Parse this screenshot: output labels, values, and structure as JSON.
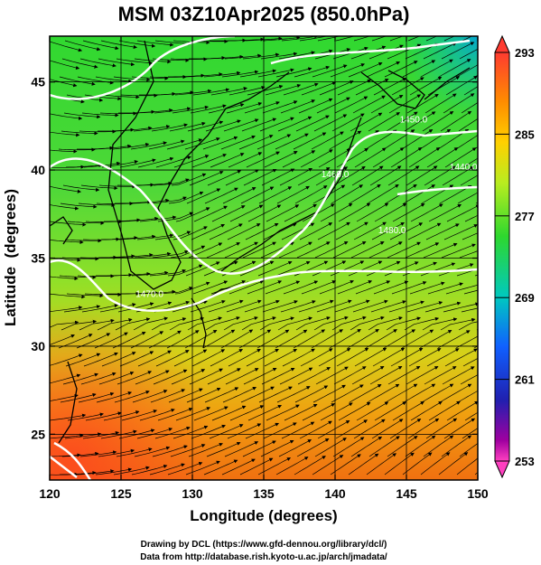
{
  "chart_data": {
    "type": "heatmap",
    "title": "MSM 03Z10Apr2025 (850.0hPa)",
    "xlabel": "Longitude (degrees)",
    "ylabel": "Latitude  (degrees)",
    "xlim": [
      120,
      150
    ],
    "ylim": [
      22.4,
      47.6
    ],
    "xticks": [
      "120",
      "125",
      "130",
      "135",
      "140",
      "145",
      "150"
    ],
    "yticks": [
      "25",
      "30",
      "35",
      "40",
      "45"
    ],
    "colorbar": {
      "min": 253,
      "max": 293,
      "labels": [
        "293",
        "285",
        "277",
        "269",
        "261",
        "253"
      ],
      "colors": [
        "#ff3b30",
        "#ff8c00",
        "#ffd000",
        "#b8ec20",
        "#2ed82e",
        "#00c8c0",
        "#1060ff",
        "#2020b0",
        "#a000a0",
        "#ff40c0"
      ]
    },
    "contours": [
      {
        "label": "1460.0",
        "lon": 140,
        "lat": 39.6
      },
      {
        "label": "1480.0",
        "lon": 144,
        "lat": 36.4
      },
      {
        "label": "1450.0",
        "lon": 145.5,
        "lat": 42.7
      },
      {
        "label": "1440.0",
        "lon": 149,
        "lat": 40.0
      },
      {
        "label": "1470.0",
        "lon": 127,
        "lat": 32.8
      }
    ],
    "grid": true,
    "streamlines": true
  },
  "footer": {
    "line1": "Drawing by DCL (https://www.gfd-dennou.org/library/dcl/)",
    "line2": "Data from http://database.rish.kyoto-u.ac.jp/arch/jmadata/"
  }
}
